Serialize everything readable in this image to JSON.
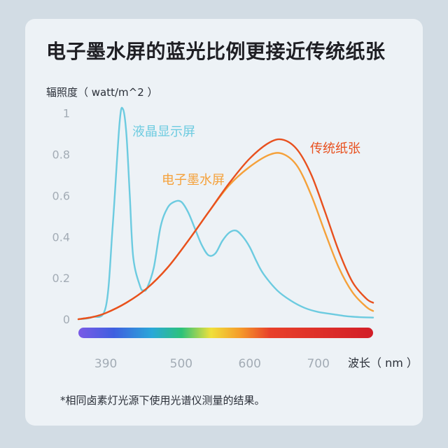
{
  "title": "电子墨水屏的蓝光比例更接近传统纸张",
  "footnote": "*相同卤素灯光源下使用光谱仪测量的结果。",
  "colors": {
    "lcd": "#6ccbe0",
    "eink": "#f5a13a",
    "paper": "#e8501e",
    "tick": "#a3acb5",
    "card": "#edf2f6",
    "background": "#d2dce4"
  },
  "chart_data": {
    "type": "line",
    "title": "电子墨水屏的蓝光比例更接近传统纸张",
    "ylabel": "辐照度（ watt/m^2 ）",
    "xlabel": "波长（ nm ）",
    "xlim": [
      350,
      780
    ],
    "ylim": [
      0,
      1.05
    ],
    "yticks": [
      0,
      0.2,
      0.4,
      0.6,
      0.8,
      1
    ],
    "ytick_labels": [
      "0",
      "0.2",
      "0.4",
      "0.6",
      "0.8",
      "1"
    ],
    "xticks": [
      390,
      500,
      600,
      700
    ],
    "xtick_labels": [
      "390",
      "500",
      "600",
      "700"
    ],
    "grid": false,
    "spectrum_bar": true,
    "series": [
      {
        "name": "液晶显示屏",
        "key": "lcd",
        "x": [
          350,
          370,
          390,
          400,
          410,
          415,
          420,
          425,
          430,
          440,
          445,
          450,
          460,
          470,
          480,
          490,
          500,
          510,
          520,
          530,
          540,
          550,
          560,
          570,
          580,
          590,
          600,
          610,
          620,
          640,
          660,
          680,
          700,
          720,
          740,
          760,
          780
        ],
        "y": [
          0.0,
          0.01,
          0.06,
          0.45,
          0.95,
          1.02,
          0.9,
          0.6,
          0.3,
          0.16,
          0.14,
          0.15,
          0.25,
          0.45,
          0.54,
          0.57,
          0.57,
          0.52,
          0.44,
          0.36,
          0.31,
          0.32,
          0.38,
          0.42,
          0.43,
          0.4,
          0.35,
          0.28,
          0.22,
          0.14,
          0.09,
          0.055,
          0.035,
          0.025,
          0.015,
          0.01,
          0.008
        ]
      },
      {
        "name": "电子墨水屏",
        "key": "eink",
        "x": [
          350,
          370,
          390,
          420,
          450,
          480,
          510,
          540,
          570,
          600,
          630,
          650,
          670,
          690,
          710,
          730,
          750,
          770,
          780
        ],
        "y": [
          0.0,
          0.01,
          0.03,
          0.08,
          0.15,
          0.25,
          0.38,
          0.52,
          0.65,
          0.74,
          0.8,
          0.8,
          0.74,
          0.6,
          0.42,
          0.25,
          0.13,
          0.06,
          0.04
        ]
      },
      {
        "name": "传统纸张",
        "key": "paper",
        "x": [
          350,
          370,
          390,
          420,
          450,
          480,
          510,
          540,
          570,
          600,
          630,
          650,
          670,
          690,
          710,
          730,
          750,
          770,
          780
        ],
        "y": [
          0.0,
          0.01,
          0.03,
          0.08,
          0.15,
          0.25,
          0.38,
          0.52,
          0.66,
          0.78,
          0.86,
          0.87,
          0.82,
          0.7,
          0.52,
          0.33,
          0.18,
          0.1,
          0.08
        ]
      }
    ]
  }
}
